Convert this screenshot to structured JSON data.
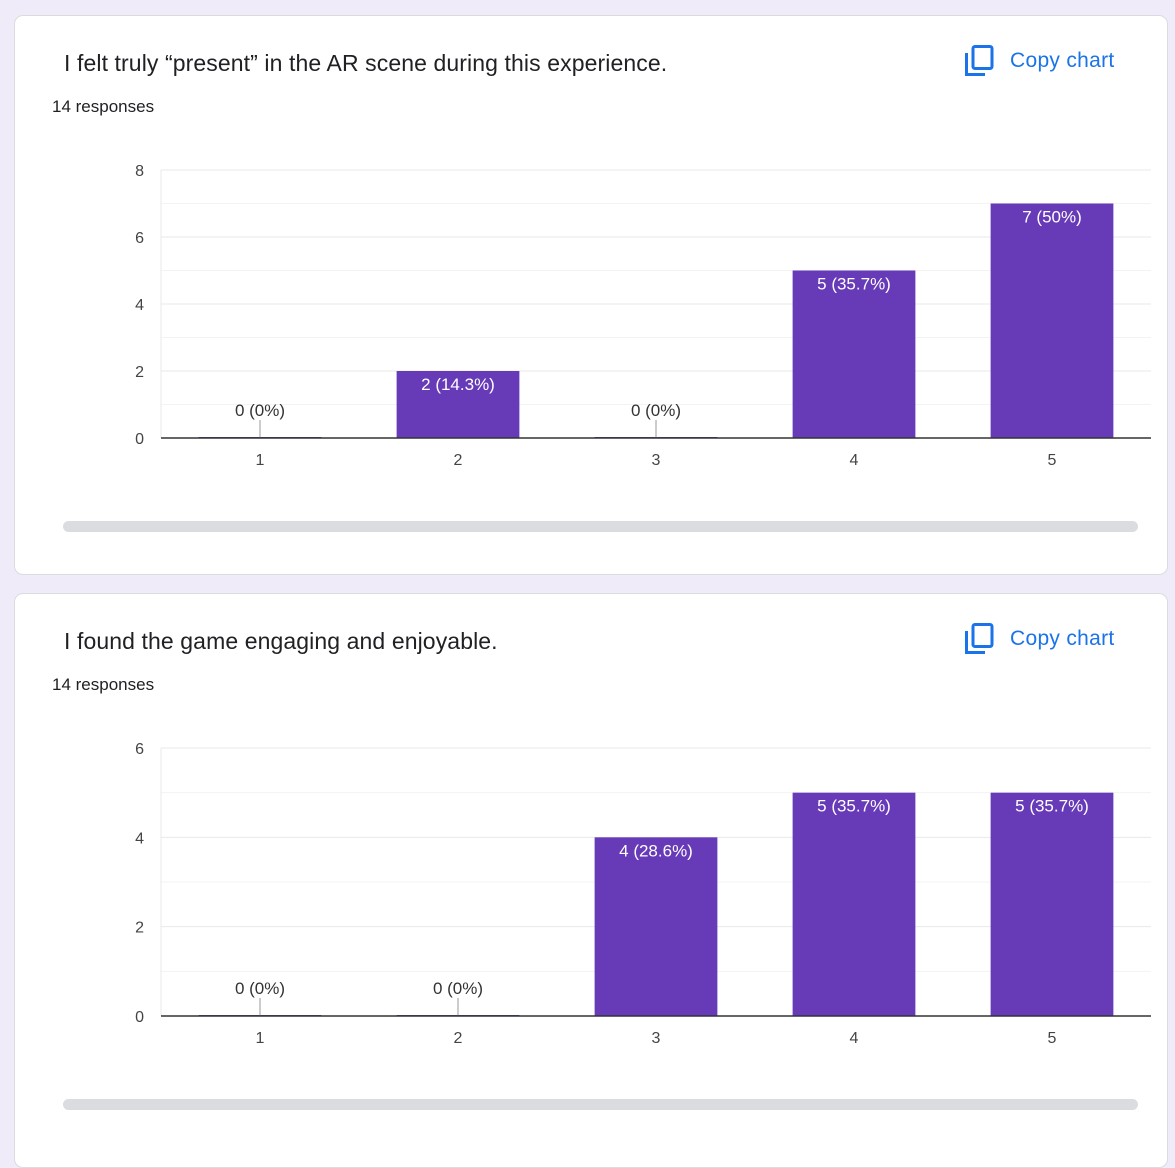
{
  "copy_label": "Copy chart",
  "copy_icon": "copy-icon",
  "colors": {
    "bar": "#673ab7",
    "accent": "#1a73e8",
    "background": "#efebf8",
    "grid": "#e8e8e8",
    "axis": "#333333",
    "text": "#202124"
  },
  "charts": [
    {
      "title": "I felt truly “present” in the AR scene during this experience.",
      "responses": "14 responses"
    },
    {
      "title": "I found the game engaging and enjoyable.",
      "responses": "14 responses"
    }
  ],
  "chart_data": [
    {
      "type": "bar",
      "title": "I felt truly “present” in the AR scene during this experience.",
      "categories": [
        "1",
        "2",
        "3",
        "4",
        "5"
      ],
      "values": [
        0,
        2,
        0,
        5,
        7
      ],
      "data_labels": [
        "0 (0%)",
        "2 (14.3%)",
        "0 (0%)",
        "5 (35.7%)",
        "7 (50%)"
      ],
      "y_ticks": [
        0,
        2,
        4,
        6,
        8
      ],
      "ylim": [
        0,
        8
      ],
      "grid": true,
      "legend": "none",
      "xlabel": "",
      "ylabel": ""
    },
    {
      "type": "bar",
      "title": "I found the game engaging and enjoyable.",
      "categories": [
        "1",
        "2",
        "3",
        "4",
        "5"
      ],
      "values": [
        0,
        0,
        4,
        5,
        5
      ],
      "data_labels": [
        "0 (0%)",
        "0 (0%)",
        "4 (28.6%)",
        "5 (35.7%)",
        "5 (35.7%)"
      ],
      "y_ticks": [
        0,
        2,
        4,
        6
      ],
      "ylim": [
        0,
        6
      ],
      "grid": true,
      "legend": "none",
      "xlabel": "",
      "ylabel": ""
    }
  ]
}
